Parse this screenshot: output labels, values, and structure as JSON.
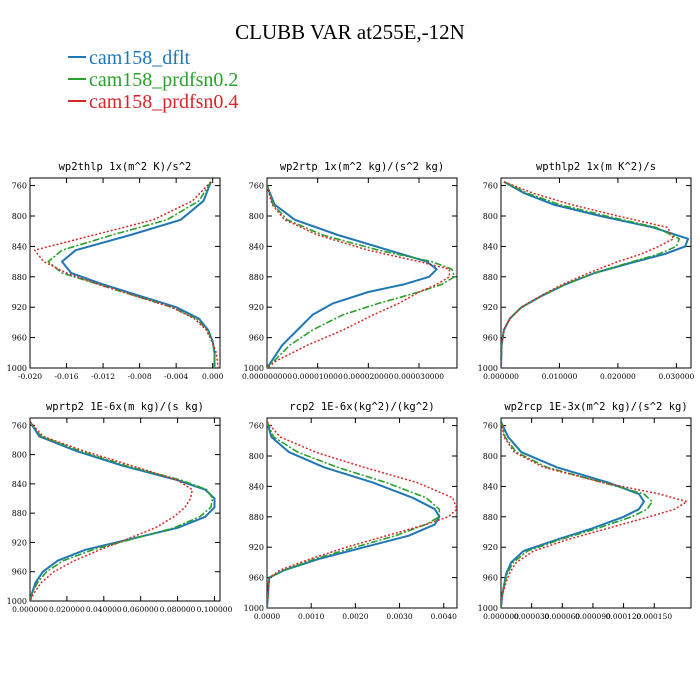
{
  "figure": {
    "title": "CLUBB VAR at255E,-12N",
    "legend": [
      {
        "label": "cam158_dflt",
        "color": "#1f77b4"
      },
      {
        "label": "cam158_prdfsn0.2",
        "color": "#2ca02c"
      },
      {
        "label": "cam158_prdfsn0.4",
        "color": "#d62728"
      }
    ]
  },
  "chart_data": [
    {
      "type": "line",
      "title": "wp2thlp  1x(m^2 K)/s^2",
      "xlim": [
        -0.02,
        0.0008
      ],
      "ylim": [
        1000,
        750
      ],
      "xticks": [
        -0.02,
        -0.016,
        -0.012,
        -0.008,
        -0.004,
        0.0
      ],
      "xtick_labels": [
        "-0.020",
        "-0.016",
        "-0.012",
        "-0.008",
        "-0.004",
        "0.000"
      ],
      "yticks": [
        760,
        800,
        840,
        880,
        920,
        960,
        1000
      ],
      "pressure": [
        755,
        780,
        805,
        825,
        845,
        860,
        875,
        890,
        905,
        920,
        935,
        950,
        965,
        980,
        1000
      ],
      "series": [
        {
          "name": "cam158_dflt",
          "values": [
            -0.0002,
            -0.001,
            -0.0035,
            -0.009,
            -0.015,
            -0.0165,
            -0.0155,
            -0.012,
            -0.008,
            -0.004,
            -0.0015,
            -0.0005,
            0.0,
            0.0002,
            0.0002
          ]
        },
        {
          "name": "cam158_prdfsn0.2",
          "values": [
            -0.0002,
            -0.0015,
            -0.005,
            -0.011,
            -0.0165,
            -0.018,
            -0.0165,
            -0.0125,
            -0.0085,
            -0.0045,
            -0.0018,
            -0.0006,
            0.0,
            0.0002,
            0.0002
          ]
        },
        {
          "name": "cam158_prdfsn0.4",
          "values": [
            -0.0002,
            -0.0022,
            -0.0065,
            -0.013,
            -0.0195,
            -0.0185,
            -0.016,
            -0.0125,
            -0.0085,
            -0.0045,
            -0.002,
            -0.0007,
            -0.0001,
            0.0004,
            0.0006
          ]
        }
      ]
    },
    {
      "type": "line",
      "title": "wp2rtp  1x(m^2 kg)/(s^2 kg)",
      "xlim": [
        0.0,
        3.75e-05
      ],
      "ylim": [
        1000,
        750
      ],
      "xticks": [
        0.0,
        1e-05,
        2e-05,
        3e-05
      ],
      "xtick_labels": [
        "0.000000000",
        "0.000010000",
        "0.000020000",
        "0.000030000"
      ],
      "yticks": [
        760,
        800,
        840,
        880,
        920,
        960,
        1000
      ],
      "pressure": [
        760,
        785,
        805,
        825,
        845,
        860,
        870,
        880,
        890,
        900,
        915,
        930,
        950,
        970,
        990,
        1000
      ],
      "series": [
        {
          "name": "cam158_dflt",
          "values": [
            0.0,
            1.5e-06,
            5.5e-06,
            1.4e-05,
            2.4e-05,
            3.15e-05,
            3.35e-05,
            3.2e-05,
            2.7e-05,
            2e-05,
            1.3e-05,
            9e-06,
            6e-06,
            3e-06,
            1e-06,
            0.0
          ]
        },
        {
          "name": "cam158_prdfsn0.2",
          "values": [
            0.0,
            1.2e-06,
            4e-06,
            1.1e-05,
            2.2e-05,
            3.25e-05,
            3.65e-05,
            3.7e-05,
            3.45e-05,
            3e-05,
            2.2e-05,
            1.5e-05,
            9e-06,
            4.5e-06,
            1.5e-06,
            0.0
          ]
        },
        {
          "name": "cam158_prdfsn0.4",
          "values": [
            0.0,
            1e-06,
            3.5e-06,
            1e-05,
            2e-05,
            3e-05,
            3.6e-05,
            3.6e-05,
            3.35e-05,
            3e-05,
            2.6e-05,
            2.1e-05,
            1.5e-05,
            8e-06,
            2e-06,
            0.0
          ]
        }
      ]
    },
    {
      "type": "line",
      "title": "wpthlp2  1x(m K^2)/s",
      "xlim": [
        0.0,
        0.0325
      ],
      "ylim": [
        1000,
        750
      ],
      "xticks": [
        0.0,
        0.01,
        0.02,
        0.03
      ],
      "xtick_labels": [
        "0.000000",
        "0.010000",
        "0.020000",
        "0.030000"
      ],
      "yticks": [
        760,
        800,
        840,
        880,
        920,
        960,
        1000
      ],
      "pressure": [
        755,
        770,
        785,
        800,
        815,
        830,
        840,
        850,
        860,
        875,
        890,
        905,
        920,
        935,
        950,
        970,
        1000
      ],
      "series": [
        {
          "name": "cam158_dflt",
          "values": [
            0.0005,
            0.004,
            0.009,
            0.017,
            0.026,
            0.032,
            0.0315,
            0.028,
            0.023,
            0.016,
            0.011,
            0.007,
            0.0035,
            0.0015,
            0.0005,
            0.0001,
            0.0
          ]
        },
        {
          "name": "cam158_prdfsn0.2",
          "values": [
            0.0005,
            0.0045,
            0.01,
            0.018,
            0.0265,
            0.0305,
            0.03,
            0.027,
            0.0225,
            0.016,
            0.011,
            0.007,
            0.0035,
            0.0015,
            0.0005,
            0.0001,
            0.0
          ]
        },
        {
          "name": "cam158_prdfsn0.4",
          "values": [
            0.0005,
            0.0055,
            0.012,
            0.02,
            0.0285,
            0.0295,
            0.027,
            0.024,
            0.02,
            0.015,
            0.0105,
            0.0068,
            0.0035,
            0.0015,
            0.0005,
            0.0001,
            0.0
          ]
        }
      ]
    },
    {
      "type": "line",
      "title": "wprtp2  1E-6x(m kg)/(s kg)",
      "xlim": [
        0.0,
        0.103
      ],
      "ylim": [
        1000,
        750
      ],
      "xticks": [
        0.0,
        0.02,
        0.04,
        0.06,
        0.08,
        0.1
      ],
      "xtick_labels": [
        "0.000000",
        "0.020000",
        "0.040000",
        "0.060000",
        "0.080000",
        "0.100000"
      ],
      "yticks": [
        760,
        800,
        840,
        880,
        920,
        960,
        1000
      ],
      "pressure": [
        755,
        775,
        795,
        815,
        835,
        848,
        860,
        872,
        885,
        900,
        915,
        930,
        945,
        960,
        975,
        990,
        1000
      ],
      "series": [
        {
          "name": "cam158_dflt",
          "values": [
            0.0,
            0.005,
            0.025,
            0.05,
            0.08,
            0.095,
            0.1,
            0.1,
            0.095,
            0.08,
            0.055,
            0.03,
            0.015,
            0.007,
            0.003,
            0.001,
            0.0
          ]
        },
        {
          "name": "cam158_prdfsn0.2",
          "values": [
            0.0,
            0.006,
            0.027,
            0.052,
            0.082,
            0.096,
            0.099,
            0.098,
            0.092,
            0.078,
            0.056,
            0.034,
            0.018,
            0.009,
            0.004,
            0.001,
            0.0
          ]
        },
        {
          "name": "cam158_prdfsn0.4",
          "values": [
            0.0,
            0.007,
            0.029,
            0.055,
            0.08,
            0.088,
            0.087,
            0.084,
            0.078,
            0.068,
            0.053,
            0.038,
            0.024,
            0.013,
            0.006,
            0.002,
            0.0
          ]
        }
      ]
    },
    {
      "type": "line",
      "title": "rcp2  1E-6x(kg^2)/(kg^2)",
      "xlim": [
        0.0,
        0.0043
      ],
      "ylim": [
        1000,
        750
      ],
      "xticks": [
        0.0,
        0.001,
        0.002,
        0.003,
        0.004
      ],
      "xtick_labels": [
        "0.0000",
        "0.0010",
        "0.0020",
        "0.0030",
        "0.0040"
      ],
      "yticks": [
        760,
        800,
        840,
        880,
        920,
        960,
        1000
      ],
      "pressure": [
        755,
        775,
        795,
        815,
        835,
        855,
        870,
        880,
        890,
        905,
        920,
        935,
        950,
        960,
        1000
      ],
      "series": [
        {
          "name": "cam158_dflt",
          "values": [
            0.0,
            0.0001,
            0.0005,
            0.0013,
            0.0024,
            0.0033,
            0.0038,
            0.0039,
            0.0038,
            0.0032,
            0.0022,
            0.0012,
            0.0004,
            5e-05,
            0.0
          ]
        },
        {
          "name": "cam158_prdfsn0.2",
          "values": [
            0.0,
            0.00015,
            0.0007,
            0.0016,
            0.0027,
            0.0036,
            0.0039,
            0.0039,
            0.0036,
            0.0029,
            0.002,
            0.0011,
            0.0004,
            5e-05,
            0.0
          ]
        },
        {
          "name": "cam158_prdfsn0.4",
          "values": [
            0.0,
            0.0003,
            0.0011,
            0.0022,
            0.0034,
            0.0042,
            0.0043,
            0.0041,
            0.0036,
            0.0027,
            0.0018,
            0.001,
            0.0003,
            5e-05,
            0.0
          ]
        }
      ]
    },
    {
      "type": "line",
      "title": "wp2rcp  1E-3x(m^2 kg)/(s^2 kg)",
      "xlim": [
        0.0,
        0.000186
      ],
      "ylim": [
        1000,
        750
      ],
      "xticks": [
        0.0,
        3e-05,
        6e-05,
        9e-05,
        0.00012,
        0.00015
      ],
      "xtick_labels": [
        "0.000000",
        "0.000030",
        "0.000060",
        "0.000090",
        "0.000120",
        "0.000150"
      ],
      "yticks": [
        760,
        800,
        840,
        880,
        920,
        960,
        1000
      ],
      "pressure": [
        755,
        775,
        795,
        815,
        835,
        850,
        860,
        870,
        880,
        895,
        910,
        925,
        940,
        955,
        970,
        985,
        1000
      ],
      "series": [
        {
          "name": "cam158_dflt",
          "values": [
            0.0,
            7e-06,
            2e-05,
            5.5e-05,
            0.000105,
            0.000135,
            0.00014,
            0.000135,
            0.00012,
            9e-05,
            5.5e-05,
            2.2e-05,
            1e-05,
            5e-06,
            3e-06,
            1e-06,
            0.0
          ]
        },
        {
          "name": "cam158_prdfsn0.2",
          "values": [
            0.0,
            4e-06,
            1.5e-05,
            4.5e-05,
            0.0001,
            0.00014,
            0.000148,
            0.000143,
            0.000128,
            9.5e-05,
            5.8e-05,
            2.6e-05,
            1.2e-05,
            6e-06,
            3e-06,
            1e-06,
            0.0
          ]
        },
        {
          "name": "cam158_prdfsn0.4",
          "values": [
            0.0,
            3e-06,
            1.3e-05,
            4.2e-05,
            0.0001,
            0.000155,
            0.000182,
            0.00017,
            0.000145,
            0.000105,
            6.5e-05,
            3.2e-05,
            1.5e-05,
            8e-06,
            4e-06,
            1e-06,
            0.0
          ]
        }
      ]
    }
  ]
}
